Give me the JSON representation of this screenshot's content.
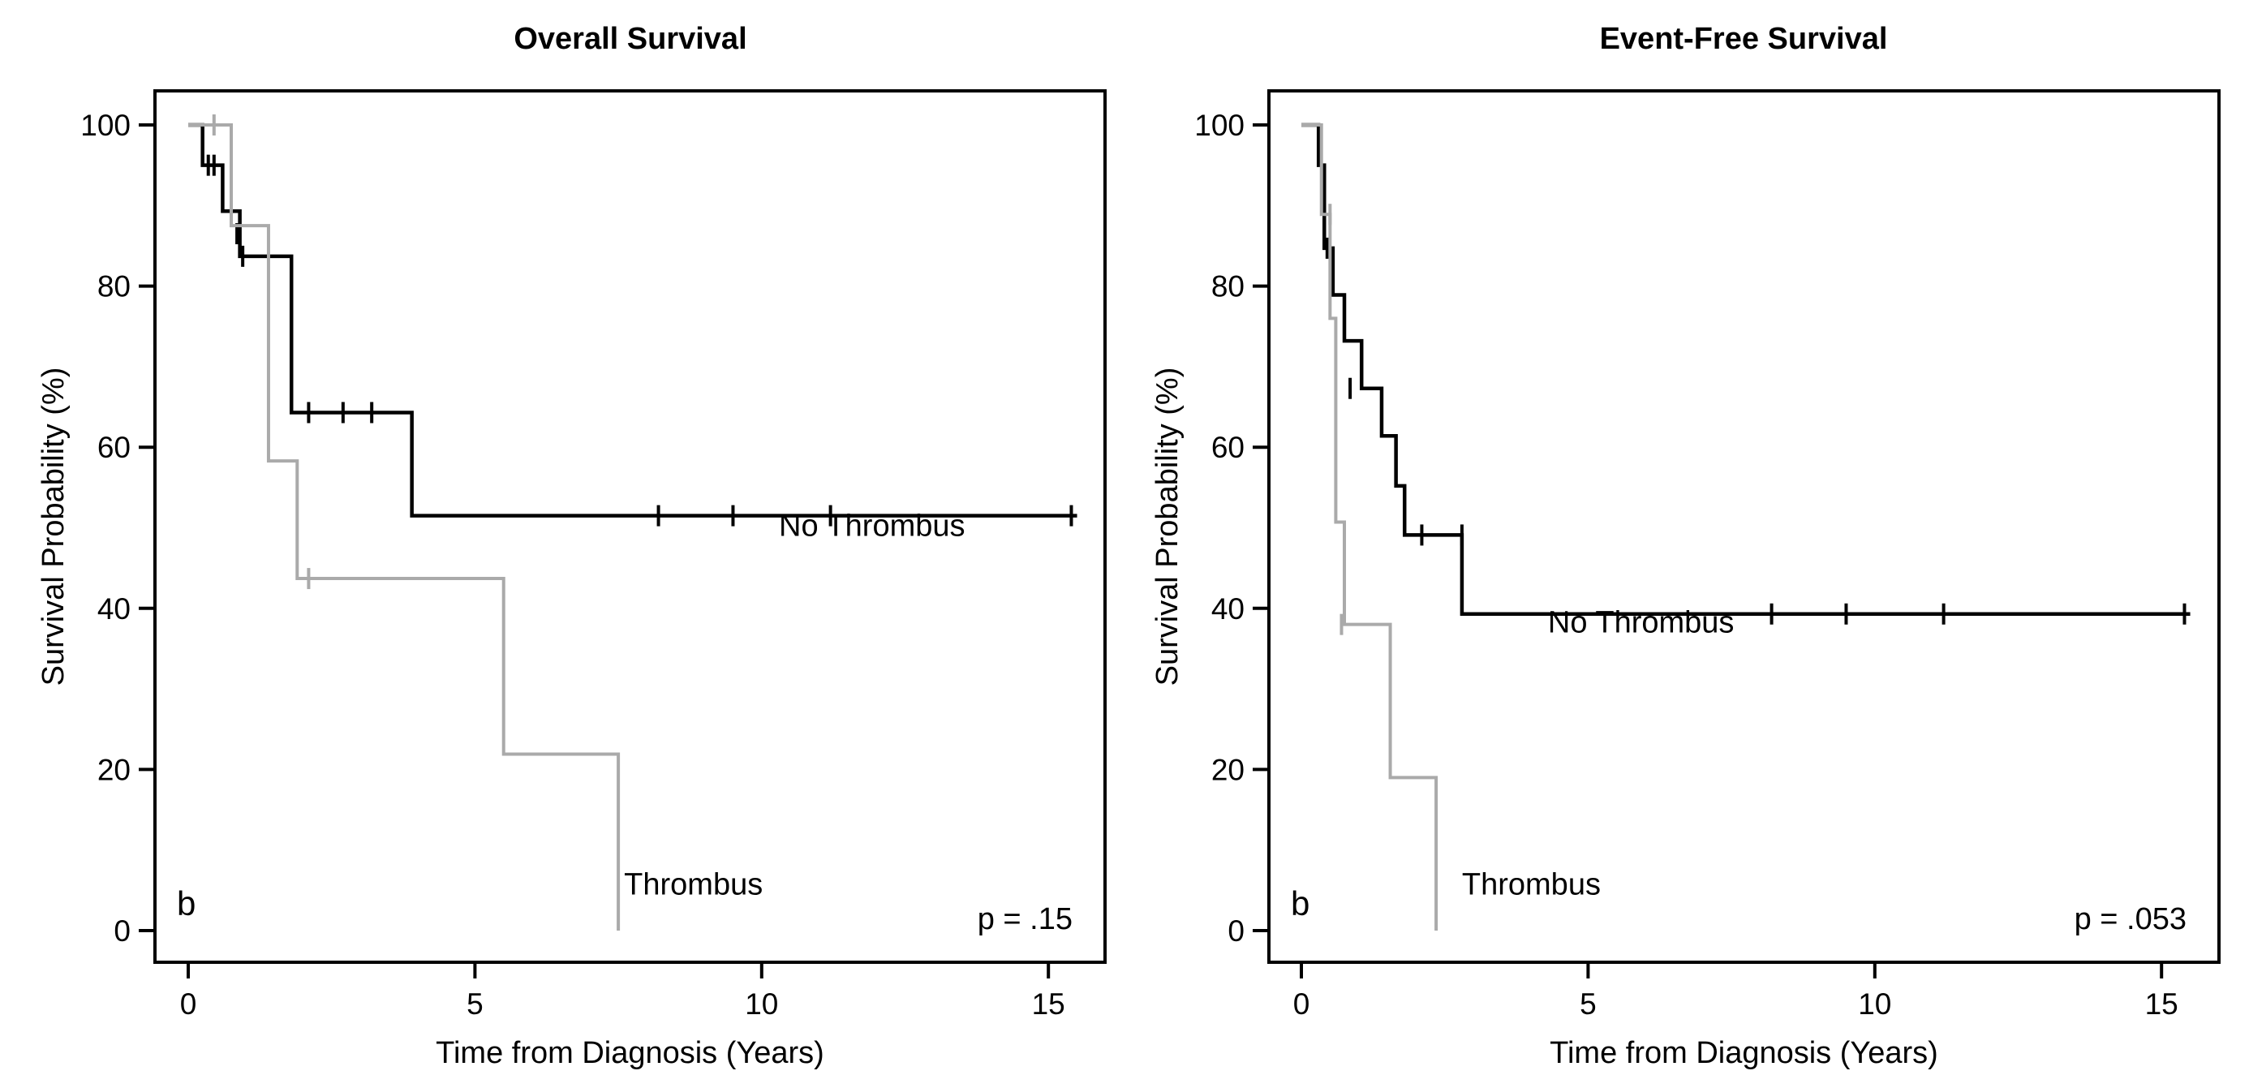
{
  "chart_data": [
    {
      "type": "line",
      "title": "Overall Survival",
      "xlabel": "Time from Diagnosis (Years)",
      "ylabel": "Survival Probability (%)",
      "xlim": [
        0,
        16
      ],
      "ylim": [
        0,
        100
      ],
      "xticks": [
        0,
        5,
        10,
        15
      ],
      "yticks": [
        0,
        20,
        40,
        60,
        80,
        100
      ],
      "panel_letter": "b",
      "p_value": "p = .15",
      "series": [
        {
          "name": "No Thrombus",
          "label": "No Thrombus",
          "color": "#000000",
          "label_at": [
            10.3,
            49
          ],
          "steps": [
            [
              0,
              100
            ],
            [
              0.25,
              95
            ],
            [
              0.6,
              89.3
            ],
            [
              0.9,
              83.7
            ],
            [
              1.8,
              64.3
            ],
            [
              3.9,
              51.5
            ],
            [
              15.5,
              51.5
            ]
          ],
          "censors": [
            [
              0.35,
              95
            ],
            [
              0.45,
              95
            ],
            [
              0.85,
              86.5
            ],
            [
              0.95,
              83.7
            ],
            [
              2.1,
              64.3
            ],
            [
              2.7,
              64.3
            ],
            [
              3.2,
              64.3
            ],
            [
              8.2,
              51.5
            ],
            [
              9.5,
              51.5
            ],
            [
              11.2,
              51.5
            ],
            [
              15.4,
              51.5
            ]
          ]
        },
        {
          "name": "Thrombus",
          "label": "Thrombus",
          "color": "#aaaaaa",
          "label_at": [
            7.6,
            4.5
          ],
          "steps": [
            [
              0,
              100
            ],
            [
              0.75,
              87.5
            ],
            [
              1.4,
              58.3
            ],
            [
              1.9,
              43.7
            ],
            [
              5.5,
              21.9
            ],
            [
              7.5,
              0
            ]
          ],
          "censors": [
            [
              0.45,
              100
            ],
            [
              2.1,
              43.7
            ]
          ]
        }
      ]
    },
    {
      "type": "line",
      "title": "Event-Free Survival",
      "xlabel": "Time from Diagnosis (Years)",
      "ylabel": "Survival Probability (%)",
      "xlim": [
        0,
        16
      ],
      "ylim": [
        0,
        100
      ],
      "xticks": [
        0,
        5,
        10,
        15
      ],
      "yticks": [
        0,
        20,
        40,
        60,
        80,
        100
      ],
      "panel_letter": "b",
      "p_value": "p = .053",
      "series": [
        {
          "name": "No Thrombus",
          "label": "No Thrombus",
          "color": "#000000",
          "label_at": [
            4.3,
            37
          ],
          "steps": [
            [
              0,
              100
            ],
            [
              0.3,
              95
            ],
            [
              0.4,
              84.7
            ],
            [
              0.55,
              78.9
            ],
            [
              0.75,
              73.2
            ],
            [
              1.05,
              67.3
            ],
            [
              1.4,
              61.4
            ],
            [
              1.65,
              55.2
            ],
            [
              1.8,
              49.1
            ],
            [
              2.8,
              39.3
            ],
            [
              15.5,
              39.3
            ]
          ],
          "censors": [
            [
              0.45,
              84.7
            ],
            [
              0.85,
              67.3
            ],
            [
              2.1,
              49.1
            ],
            [
              2.8,
              49.1
            ],
            [
              8.2,
              39.3
            ],
            [
              9.5,
              39.3
            ],
            [
              11.2,
              39.3
            ],
            [
              15.4,
              39.3
            ]
          ]
        },
        {
          "name": "Thrombus",
          "label": "Thrombus",
          "color": "#aaaaaa",
          "label_at": [
            2.8,
            4.5
          ],
          "steps": [
            [
              0,
              100
            ],
            [
              0.35,
              88.9
            ],
            [
              0.5,
              76
            ],
            [
              0.6,
              50.7
            ],
            [
              0.75,
              38
            ],
            [
              1.55,
              19
            ],
            [
              2.35,
              0
            ]
          ],
          "censors": [
            [
              0.5,
              88.9
            ],
            [
              0.7,
              38
            ]
          ]
        }
      ]
    }
  ]
}
